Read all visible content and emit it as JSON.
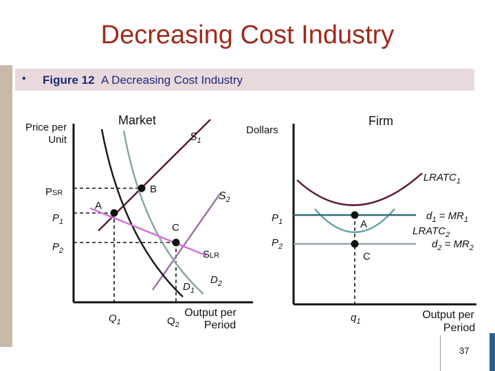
{
  "slide": {
    "title": "Decreasing Cost Industry",
    "caption_bullet": "•",
    "caption_figure": "Figure 12",
    "caption_text": "A Decreasing Cost Industry",
    "page_number": "37"
  },
  "market": {
    "panel_title": "Market",
    "y_axis_label_line1": "Price per",
    "y_axis_label_line2": "Unit",
    "x_axis_label_line1": "Output per",
    "x_axis_label_line2": "Period",
    "price_labels": {
      "psr_main": "P",
      "psr_sub": "SR",
      "p1_main": "P",
      "p1_sub": "1",
      "p2_main": "P",
      "p2_sub": "2"
    },
    "quantity_labels": {
      "q1_main": "Q",
      "q1_sub": "1",
      "q2_main": "Q",
      "q2_sub": "2"
    },
    "curve_labels": {
      "s1_main": "S",
      "s1_sub": "1",
      "s2_main": "S",
      "s2_sub": "2",
      "slr_main": "S",
      "slr_sub": "LR",
      "d1_main": "D",
      "d1_sub": "1",
      "d2_main": "D",
      "d2_sub": "2"
    },
    "point_labels": {
      "a": "A",
      "b": "B",
      "c": "C"
    },
    "colors": {
      "s1": "#5c1a3c",
      "s2": "#a070a8",
      "slr": "#d070d8",
      "d1": "#1a1a1a",
      "d2": "#8aa4a8"
    }
  },
  "firm": {
    "panel_title": "Firm",
    "y_axis_label": "Dollars",
    "x_axis_label_line1": "Output per",
    "x_axis_label_line2": "Period",
    "price_labels": {
      "p1_main": "P",
      "p1_sub": "1",
      "p2_main": "P",
      "p2_sub": "2"
    },
    "quantity_label": {
      "q1_main": "q",
      "q1_sub": "1"
    },
    "curve_labels": {
      "lratc1_main": "LRATC",
      "lratc1_sub": "1",
      "lratc2_main": "LRATC",
      "lratc2_sub": "2",
      "d1_main": "d",
      "d1_sub": "1",
      "d1_rest": " = MR",
      "d1_sub2": "1",
      "d2_main": "d",
      "d2_sub": "2",
      "d2_rest": " = MR",
      "d2_sub2": "2"
    },
    "point_labels": {
      "a": "A",
      "c": "C"
    },
    "colors": {
      "lratc1": "#5c1a3c",
      "lratc2": "#5fa0a8",
      "d1": "#2f6a78",
      "d2": "#8aa4a8"
    }
  }
}
